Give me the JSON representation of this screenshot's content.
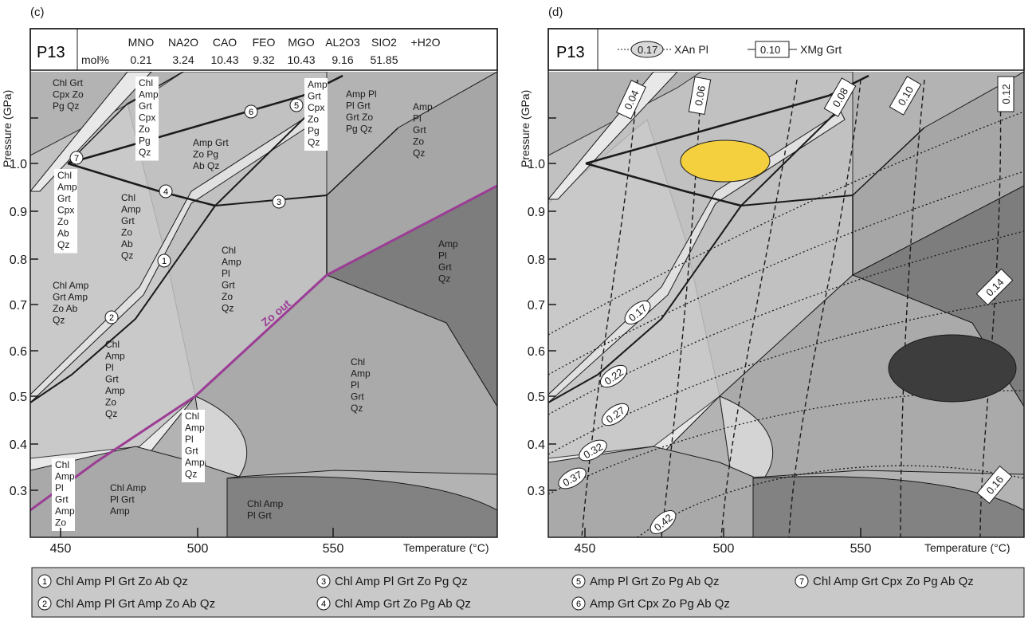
{
  "panels": {
    "c": {
      "label": "(c)",
      "sample": "P13",
      "composition": {
        "unit": "mol%",
        "oxides": [
          "MNO",
          "NA2O",
          "CAO",
          "FEO",
          "MGO",
          "AL2O3",
          "SIO2",
          "+H2O"
        ],
        "values": [
          "0.21",
          "3.24",
          "10.43",
          "9.32",
          "10.43",
          "9.16",
          "51.85",
          ""
        ]
      },
      "x_ticks": [
        "450",
        "500",
        "550"
      ],
      "y_ticks": [
        "1.0",
        "0.9",
        "0.8",
        "0.7",
        "0.6",
        "0.5",
        "0.4",
        "0.3"
      ],
      "xlabel": "Temperature (°C)",
      "ylabel": "Pressure (GPa)",
      "zo_out": "Zo out",
      "fields": [
        [
          "Chl Grt",
          "Cpx Zo",
          "Pg Qz"
        ],
        [
          "Chl",
          "Amp",
          "Grt",
          "Cpx",
          "Zo",
          "Pg",
          "Qz"
        ],
        [
          "Amp Grt",
          "Zo Pg",
          "Ab Qz"
        ],
        [
          "Amp",
          "Grt",
          "Cpx",
          "Zo",
          "Pg",
          "Qz"
        ],
        [
          "Amp Pl",
          "Pl Grt",
          "Grt Zo",
          "Pg Qz"
        ],
        [
          "Amp",
          "Pl",
          "Grt",
          "Zo",
          "Qz"
        ],
        [
          "Chl",
          "Amp",
          "Grt",
          "Cpx",
          "Zo",
          "Ab",
          "Qz"
        ],
        [
          "Chl",
          "Amp",
          "Grt",
          "Zo",
          "Ab",
          "Qz"
        ],
        [
          "Chl",
          "Amp",
          "Pl",
          "Grt",
          "Zo",
          "Qz"
        ],
        [
          "Amp",
          "Pl",
          "Grt",
          "Qz"
        ],
        [
          "Chl Amp",
          "Grt Amp",
          "Zo Ab",
          "Qz"
        ],
        [
          "Chl",
          "Amp",
          "Pl",
          "Grt",
          "Amp",
          "Zo",
          "Qz"
        ],
        [
          "Chl",
          "Amp",
          "Pl",
          "Grt",
          "Qz"
        ],
        [
          "Chl",
          "Amp",
          "Pl",
          "Grt",
          "Amp",
          "Qz"
        ],
        [
          "Chl",
          "Amp",
          "Pl",
          "Grt",
          "Amp",
          "Zo"
        ],
        [
          "Chl Amp",
          "Pl Grt",
          "Amp"
        ],
        [
          "Chl Amp",
          "Pl Grt"
        ]
      ],
      "reaction_markers": [
        "1",
        "2",
        "3",
        "4",
        "5",
        "6",
        "7"
      ]
    },
    "d": {
      "label": "(d)",
      "sample": "P13",
      "legend_xan": "0.17",
      "legend_xan_text": "XAn Pl",
      "legend_xmg": "0.10",
      "legend_xmg_text": "XMg Grt",
      "x_ticks": [
        "450",
        "500",
        "550"
      ],
      "y_ticks": [
        "1.0",
        "0.9",
        "0.8",
        "0.7",
        "0.6",
        "0.5",
        "0.4",
        "0.3"
      ],
      "xlabel": "Temperature (°C)",
      "ylabel": "Pressure (GPa)",
      "xmg_labels": [
        "0.04",
        "0.06",
        "0.08",
        "0.10",
        "0.12",
        "0.14",
        "0.16"
      ],
      "xan_labels": [
        "0.17",
        "0.22",
        "0.27",
        "0.32",
        "0.37",
        "0.42"
      ],
      "colors": {
        "highlight": "#f4d03f",
        "dark": "#3d3d3d"
      }
    }
  },
  "legend": [
    {
      "n": "1",
      "text": "Chl Amp Pl Grt Zo Ab Qz"
    },
    {
      "n": "2",
      "text": "Chl Amp Pl Grt Amp Zo Ab Qz"
    },
    {
      "n": "3",
      "text": "Chl Amp Pl Grt Zo Pg Qz"
    },
    {
      "n": "4",
      "text": "Chl Amp Grt Zo Pg Ab Qz"
    },
    {
      "n": "5",
      "text": "Amp Pl Grt Zo Pg Ab Qz"
    },
    {
      "n": "6",
      "text": "Amp Grt Cpx Zo Pg Ab Qz"
    },
    {
      "n": "7",
      "text": "Chl Amp Grt Cpx Zo Pg Ab Qz"
    }
  ],
  "colors": {
    "zo_out": "#9b3d95",
    "light": "#e8e8e8",
    "mid": "#c8c8c8",
    "medium": "#b3b3b3",
    "darker": "#8a8a8a"
  }
}
